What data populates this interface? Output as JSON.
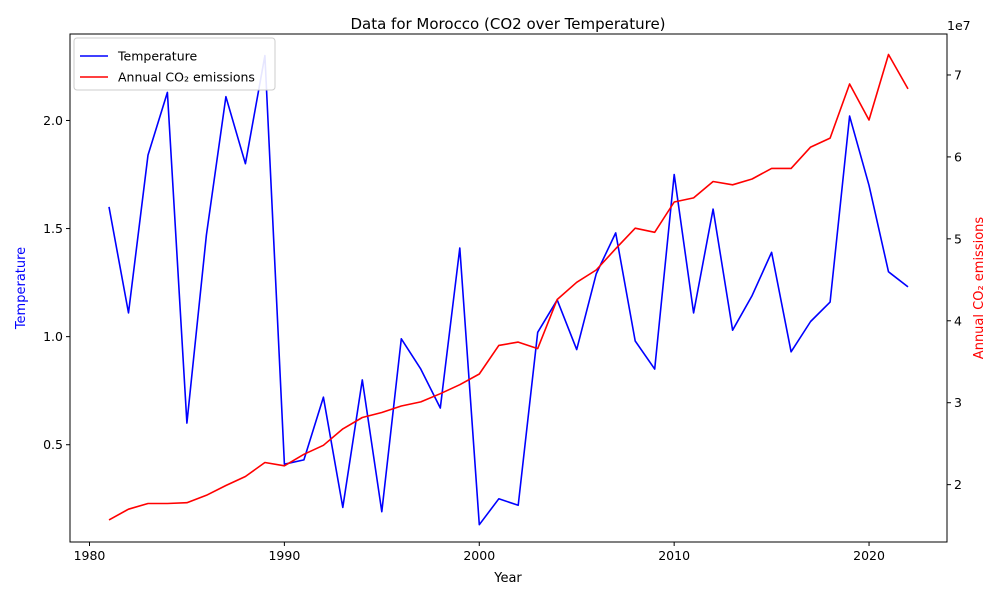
{
  "chart_data": {
    "type": "line",
    "title": "Data for Morocco (CO2 over Temperature)",
    "xlabel": "Year",
    "ylabel_left": "Temperature",
    "ylabel_right": "Annual CO₂ emissions",
    "right_axis_multiplier": "1e7",
    "xlim": [
      1979,
      2024
    ],
    "ylim_left": [
      0.05,
      2.4
    ],
    "ylim_right": [
      13000000,
      75000000
    ],
    "x_ticks": [
      1980,
      1990,
      2000,
      2010,
      2020
    ],
    "y_ticks_left": [
      0.5,
      1.0,
      1.5,
      2.0
    ],
    "y_ticks_right": [
      2,
      3,
      4,
      5,
      6,
      7
    ],
    "legend_position": "top-left",
    "grid": false,
    "x": [
      1981,
      1982,
      1983,
      1984,
      1985,
      1986,
      1987,
      1988,
      1989,
      1990,
      1991,
      1992,
      1993,
      1994,
      1995,
      1996,
      1997,
      1998,
      1999,
      2000,
      2001,
      2002,
      2003,
      2004,
      2005,
      2006,
      2007,
      2008,
      2009,
      2010,
      2011,
      2012,
      2013,
      2014,
      2015,
      2016,
      2017,
      2018,
      2019,
      2020,
      2021,
      2022
    ],
    "series": [
      {
        "name": "Temperature",
        "axis": "left",
        "color": "#0000ff",
        "values": [
          1.6,
          1.11,
          1.84,
          2.13,
          0.6,
          1.47,
          2.11,
          1.8,
          2.3,
          0.41,
          0.43,
          0.72,
          0.21,
          0.8,
          0.19,
          0.99,
          0.85,
          0.67,
          1.41,
          0.13,
          0.25,
          0.22,
          1.02,
          1.17,
          0.94,
          1.29,
          1.48,
          0.98,
          0.85,
          1.75,
          1.11,
          1.59,
          1.03,
          1.19,
          1.39,
          0.93,
          1.07,
          1.16,
          2.02,
          1.7,
          1.3,
          1.23
        ]
      },
      {
        "name": "Annual CO₂ emissions",
        "axis": "right",
        "color": "#ff0000",
        "values": [
          15700000,
          17000000,
          17700000,
          17700000,
          17800000,
          18700000,
          19900000,
          21000000,
          22700000,
          22300000,
          23700000,
          24800000,
          26800000,
          28200000,
          28800000,
          29600000,
          30100000,
          31100000,
          32200000,
          33500000,
          37000000,
          37400000,
          36600000,
          42600000,
          44700000,
          46200000,
          48800000,
          51300000,
          50800000,
          54500000,
          55000000,
          57000000,
          56600000,
          57300000,
          58600000,
          58600000,
          61200000,
          62300000,
          68900000,
          64500000,
          72500000,
          68300000
        ]
      }
    ]
  }
}
